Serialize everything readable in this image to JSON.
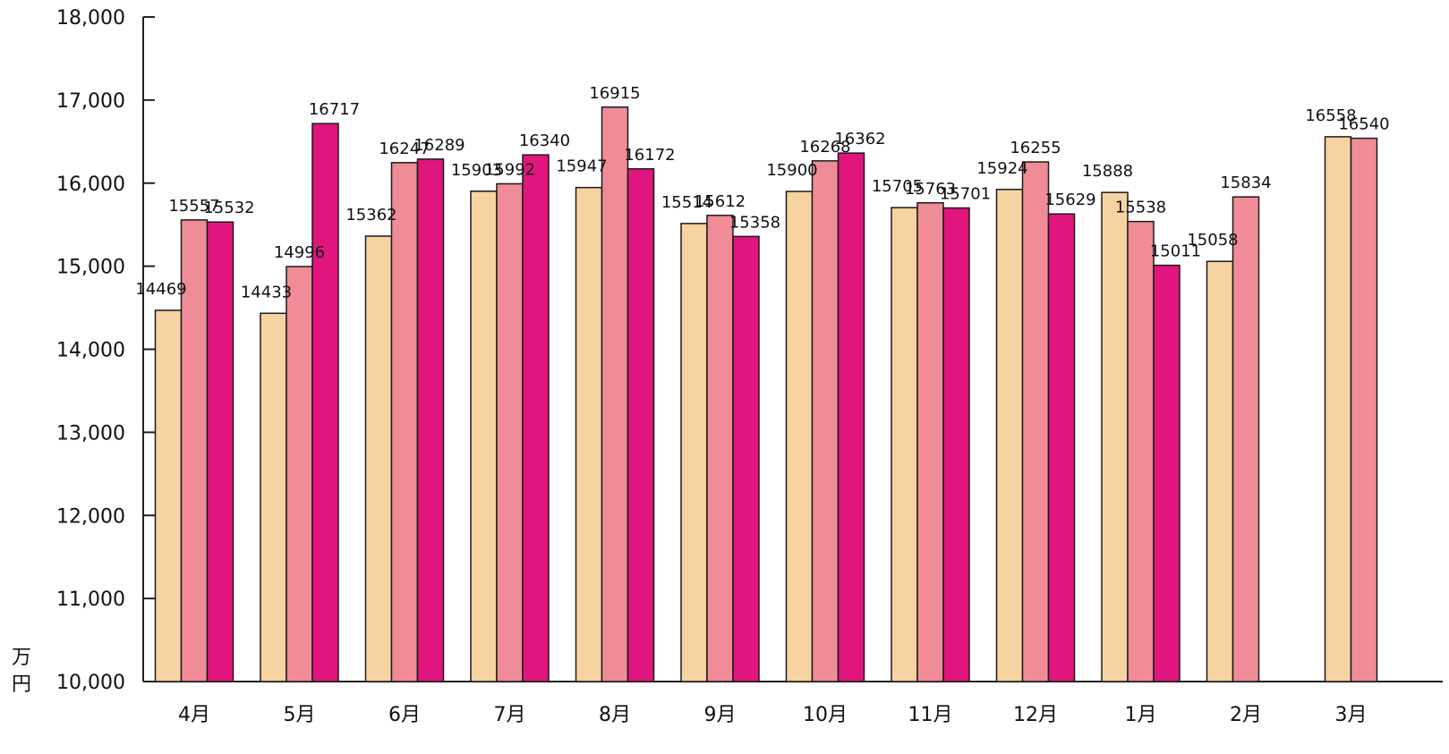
{
  "chart_data": {
    "type": "bar",
    "categories": [
      "4月",
      "5月",
      "6月",
      "7月",
      "8月",
      "9月",
      "10月",
      "11月",
      "12月",
      "1月",
      "2月",
      "3月"
    ],
    "series": [
      {
        "color": "#F7D3A2",
        "values": [
          14469,
          14433,
          15362,
          15903,
          15947,
          15514,
          15900,
          15705,
          15924,
          15888,
          15058,
          16558
        ]
      },
      {
        "color": "#F08C98",
        "values": [
          15557,
          14996,
          16247,
          15992,
          16915,
          15612,
          16268,
          15763,
          16255,
          15538,
          15834,
          16540
        ]
      },
      {
        "color": "#E0157E",
        "values": [
          15532,
          16717,
          16289,
          16340,
          16172,
          15358,
          16362,
          15701,
          15629,
          15011,
          null,
          null
        ]
      }
    ],
    "ylim": [
      10000,
      18000
    ],
    "yticks": [
      10000,
      11000,
      12000,
      13000,
      14000,
      15000,
      16000,
      17000,
      18000
    ],
    "ytick_labels": [
      "10,000",
      "11,000",
      "12,000",
      "13,000",
      "14,000",
      "15,000",
      "16,000",
      "17,000",
      "18,000"
    ],
    "ylabel": "万円",
    "xlabel": "",
    "title": "",
    "grid": false,
    "legend": "none"
  }
}
